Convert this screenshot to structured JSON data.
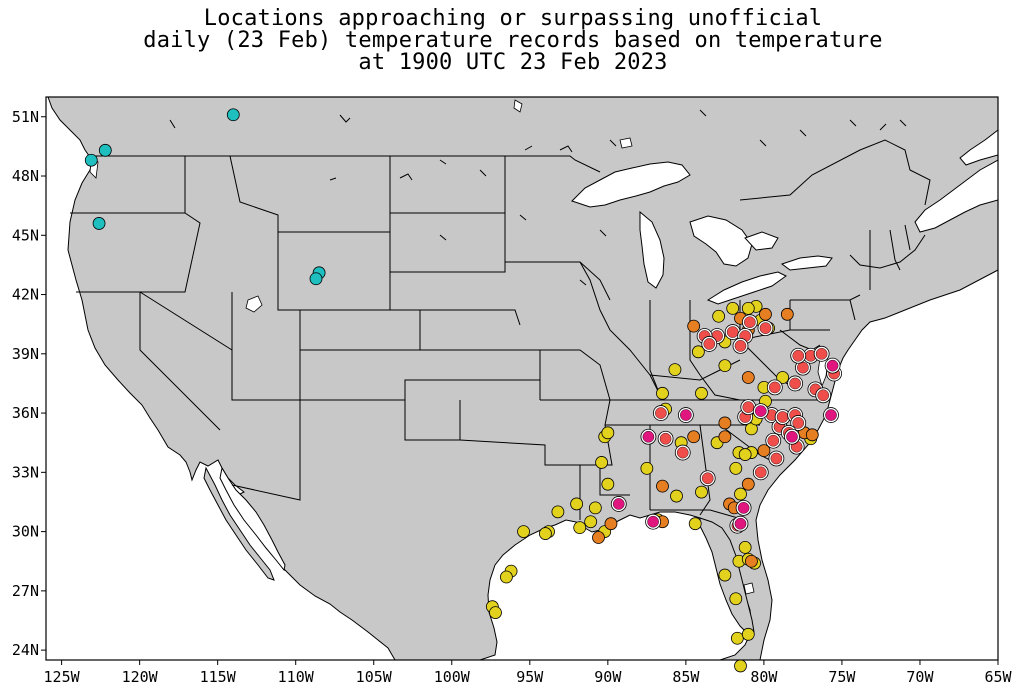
{
  "title": {
    "line1": "Locations approaching or surpassing unofficial",
    "line2": "daily (23 Feb) temperature records based on temperature",
    "line3": "at 1900 UTC 23 Feb 2023"
  },
  "axes": {
    "lon_range": [
      -126,
      -65
    ],
    "lat_range": [
      23.5,
      52
    ],
    "lat_ticks": [
      {
        "value": 51,
        "label": "51N"
      },
      {
        "value": 48,
        "label": "48N"
      },
      {
        "value": 45,
        "label": "45N"
      },
      {
        "value": 42,
        "label": "42N"
      },
      {
        "value": 39,
        "label": "39N"
      },
      {
        "value": 36,
        "label": "36N"
      },
      {
        "value": 33,
        "label": "33N"
      },
      {
        "value": 30,
        "label": "30N"
      },
      {
        "value": 27,
        "label": "27N"
      },
      {
        "value": 24,
        "label": "24N"
      }
    ],
    "lon_ticks": [
      {
        "value": -125,
        "label": "125W"
      },
      {
        "value": -120,
        "label": "120W"
      },
      {
        "value": -115,
        "label": "115W"
      },
      {
        "value": -110,
        "label": "110W"
      },
      {
        "value": -105,
        "label": "105W"
      },
      {
        "value": -100,
        "label": "100W"
      },
      {
        "value": -95,
        "label": "95W"
      },
      {
        "value": -90,
        "label": "90W"
      },
      {
        "value": -85,
        "label": "85W"
      },
      {
        "value": -80,
        "label": "80W"
      },
      {
        "value": -75,
        "label": "75W"
      },
      {
        "value": -70,
        "label": "70W"
      },
      {
        "value": -65,
        "label": "65W"
      }
    ]
  },
  "colors": {
    "land": "#c8c8c8",
    "water": "#ffffff",
    "border": "#000000",
    "cyan": "#1fbfbf",
    "yellow": "#e2d21e",
    "orange": "#e67e22",
    "red": "#ef4e4b",
    "magenta": "#e0157e"
  },
  "markers": [
    {
      "lon": -114.0,
      "lat": 51.1,
      "cat": "cyan"
    },
    {
      "lon": -122.2,
      "lat": 49.3,
      "cat": "cyan"
    },
    {
      "lon": -123.1,
      "lat": 48.8,
      "cat": "cyan"
    },
    {
      "lon": -122.6,
      "lat": 45.6,
      "cat": "cyan"
    },
    {
      "lon": -108.5,
      "lat": 43.1,
      "cat": "cyan"
    },
    {
      "lon": -108.7,
      "lat": 42.8,
      "cat": "cyan"
    },
    {
      "lon": -80.5,
      "lat": 41.4,
      "cat": "yellow"
    },
    {
      "lon": -81.0,
      "lat": 41.3,
      "cat": "yellow"
    },
    {
      "lon": -82.0,
      "lat": 41.3,
      "cat": "yellow"
    },
    {
      "lon": -80.2,
      "lat": 40.7,
      "cat": "yellow"
    },
    {
      "lon": -79.7,
      "lat": 40.3,
      "cat": "yellow"
    },
    {
      "lon": -82.9,
      "lat": 40.9,
      "cat": "yellow"
    },
    {
      "lon": -81.5,
      "lat": 40.8,
      "cat": "orange"
    },
    {
      "lon": -79.9,
      "lat": 41.0,
      "cat": "orange"
    },
    {
      "lon": -78.5,
      "lat": 41.0,
      "cat": "orange"
    },
    {
      "lon": -84.5,
      "lat": 40.4,
      "cat": "orange"
    },
    {
      "lon": -81.0,
      "lat": 40.2,
      "cat": "orange"
    },
    {
      "lon": -80.9,
      "lat": 40.6,
      "cat": "red"
    },
    {
      "lon": -83.0,
      "lat": 39.9,
      "cat": "red"
    },
    {
      "lon": -82.0,
      "lat": 40.1,
      "cat": "red"
    },
    {
      "lon": -81.2,
      "lat": 39.9,
      "cat": "red"
    },
    {
      "lon": -79.9,
      "lat": 40.3,
      "cat": "red"
    },
    {
      "lon": -83.8,
      "lat": 39.9,
      "cat": "red"
    },
    {
      "lon": -83.5,
      "lat": 39.5,
      "cat": "red"
    },
    {
      "lon": -81.5,
      "lat": 39.4,
      "cat": "red"
    },
    {
      "lon": -82.5,
      "lat": 39.6,
      "cat": "yellow"
    },
    {
      "lon": -84.2,
      "lat": 39.1,
      "cat": "yellow"
    },
    {
      "lon": -82.5,
      "lat": 38.4,
      "cat": "yellow"
    },
    {
      "lon": -85.7,
      "lat": 38.2,
      "cat": "yellow"
    },
    {
      "lon": -84.0,
      "lat": 37.0,
      "cat": "yellow"
    },
    {
      "lon": -86.5,
      "lat": 37.0,
      "cat": "yellow"
    },
    {
      "lon": -86.3,
      "lat": 36.2,
      "cat": "yellow"
    },
    {
      "lon": -86.6,
      "lat": 36.0,
      "cat": "red"
    },
    {
      "lon": -85.0,
      "lat": 35.9,
      "cat": "magenta"
    },
    {
      "lon": -81.2,
      "lat": 35.8,
      "cat": "red"
    },
    {
      "lon": -80.2,
      "lat": 36.1,
      "cat": "magenta"
    },
    {
      "lon": -79.5,
      "lat": 35.9,
      "cat": "red"
    },
    {
      "lon": -80.8,
      "lat": 35.2,
      "cat": "yellow"
    },
    {
      "lon": -79.0,
      "lat": 35.3,
      "cat": "red"
    },
    {
      "lon": -78.8,
      "lat": 35.8,
      "cat": "red"
    },
    {
      "lon": -78.0,
      "lat": 35.9,
      "cat": "red"
    },
    {
      "lon": -77.8,
      "lat": 35.5,
      "cat": "red"
    },
    {
      "lon": -77.4,
      "lat": 35.0,
      "cat": "orange"
    },
    {
      "lon": -77.9,
      "lat": 34.3,
      "cat": "red"
    },
    {
      "lon": -76.9,
      "lat": 34.9,
      "cat": "orange"
    },
    {
      "lon": -75.7,
      "lat": 35.9,
      "cat": "magenta"
    },
    {
      "lon": -79.3,
      "lat": 37.3,
      "cat": "red"
    },
    {
      "lon": -78.0,
      "lat": 37.5,
      "cat": "red"
    },
    {
      "lon": -77.5,
      "lat": 38.3,
      "cat": "red"
    },
    {
      "lon": -76.7,
      "lat": 37.2,
      "cat": "red"
    },
    {
      "lon": -76.2,
      "lat": 36.9,
      "cat": "red"
    },
    {
      "lon": -75.5,
      "lat": 38.0,
      "cat": "red"
    },
    {
      "lon": -75.6,
      "lat": 38.4,
      "cat": "magenta"
    },
    {
      "lon": -77.0,
      "lat": 38.9,
      "cat": "red"
    },
    {
      "lon": -76.3,
      "lat": 39.0,
      "cat": "red"
    },
    {
      "lon": -77.8,
      "lat": 38.9,
      "cat": "red"
    },
    {
      "lon": -78.8,
      "lat": 37.8,
      "cat": "yellow"
    },
    {
      "lon": -80.0,
      "lat": 37.3,
      "cat": "yellow"
    },
    {
      "lon": -81.0,
      "lat": 37.8,
      "cat": "orange"
    },
    {
      "lon": -79.9,
      "lat": 36.6,
      "cat": "yellow"
    },
    {
      "lon": -80.5,
      "lat": 35.7,
      "cat": "yellow"
    },
    {
      "lon": -81.0,
      "lat": 36.3,
      "cat": "red"
    },
    {
      "lon": -82.5,
      "lat": 35.5,
      "cat": "orange"
    },
    {
      "lon": -82.5,
      "lat": 34.8,
      "cat": "orange"
    },
    {
      "lon": -83.0,
      "lat": 34.5,
      "cat": "yellow"
    },
    {
      "lon": -81.6,
      "lat": 34.0,
      "cat": "yellow"
    },
    {
      "lon": -80.8,
      "lat": 34.0,
      "cat": "yellow"
    },
    {
      "lon": -81.2,
      "lat": 33.9,
      "cat": "yellow"
    },
    {
      "lon": -80.0,
      "lat": 34.1,
      "cat": "orange"
    },
    {
      "lon": -79.4,
      "lat": 34.6,
      "cat": "red"
    },
    {
      "lon": -78.4,
      "lat": 35.0,
      "cat": "red"
    },
    {
      "lon": -77.0,
      "lat": 34.7,
      "cat": "yellow"
    },
    {
      "lon": -78.2,
      "lat": 34.8,
      "cat": "magenta"
    },
    {
      "lon": -79.2,
      "lat": 33.7,
      "cat": "red"
    },
    {
      "lon": -80.2,
      "lat": 33.0,
      "cat": "red"
    },
    {
      "lon": -81.0,
      "lat": 32.4,
      "cat": "orange"
    },
    {
      "lon": -81.8,
      "lat": 33.2,
      "cat": "yellow"
    },
    {
      "lon": -83.6,
      "lat": 32.7,
      "cat": "red"
    },
    {
      "lon": -84.0,
      "lat": 32.0,
      "cat": "yellow"
    },
    {
      "lon": -81.5,
      "lat": 31.9,
      "cat": "yellow"
    },
    {
      "lon": -82.2,
      "lat": 31.4,
      "cat": "orange"
    },
    {
      "lon": -81.9,
      "lat": 31.2,
      "cat": "orange"
    },
    {
      "lon": -81.3,
      "lat": 31.2,
      "cat": "magenta"
    },
    {
      "lon": -81.5,
      "lat": 30.4,
      "cat": "magenta"
    },
    {
      "lon": -81.7,
      "lat": 30.3,
      "cat": "red"
    },
    {
      "lon": -84.5,
      "lat": 34.8,
      "cat": "orange"
    },
    {
      "lon": -85.3,
      "lat": 34.5,
      "cat": "yellow"
    },
    {
      "lon": -87.4,
      "lat": 34.8,
      "cat": "magenta"
    },
    {
      "lon": -86.3,
      "lat": 34.7,
      "cat": "red"
    },
    {
      "lon": -85.2,
      "lat": 34.0,
      "cat": "red"
    },
    {
      "lon": -87.5,
      "lat": 33.2,
      "cat": "yellow"
    },
    {
      "lon": -86.5,
      "lat": 32.3,
      "cat": "orange"
    },
    {
      "lon": -85.6,
      "lat": 31.8,
      "cat": "yellow"
    },
    {
      "lon": -86.8,
      "lat": 30.6,
      "cat": "yellow"
    },
    {
      "lon": -87.1,
      "lat": 30.5,
      "cat": "magenta"
    },
    {
      "lon": -86.5,
      "lat": 30.5,
      "cat": "orange"
    },
    {
      "lon": -84.4,
      "lat": 30.4,
      "cat": "yellow"
    },
    {
      "lon": -89.3,
      "lat": 31.4,
      "cat": "magenta"
    },
    {
      "lon": -89.8,
      "lat": 30.4,
      "cat": "orange"
    },
    {
      "lon": -90.2,
      "lat": 30.0,
      "cat": "yellow"
    },
    {
      "lon": -90.6,
      "lat": 29.7,
      "cat": "orange"
    },
    {
      "lon": -90.8,
      "lat": 31.2,
      "cat": "yellow"
    },
    {
      "lon": -90.0,
      "lat": 32.4,
      "cat": "yellow"
    },
    {
      "lon": -90.4,
      "lat": 33.5,
      "cat": "yellow"
    },
    {
      "lon": -90.2,
      "lat": 34.8,
      "cat": "yellow"
    },
    {
      "lon": -90.0,
      "lat": 35.0,
      "cat": "yellow"
    },
    {
      "lon": -91.1,
      "lat": 30.5,
      "cat": "yellow"
    },
    {
      "lon": -91.8,
      "lat": 30.2,
      "cat": "yellow"
    },
    {
      "lon": -92.0,
      "lat": 31.4,
      "cat": "yellow"
    },
    {
      "lon": -93.2,
      "lat": 31.0,
      "cat": "yellow"
    },
    {
      "lon": -93.8,
      "lat": 30.0,
      "cat": "yellow"
    },
    {
      "lon": -94.0,
      "lat": 29.9,
      "cat": "yellow"
    },
    {
      "lon": -95.4,
      "lat": 30.0,
      "cat": "yellow"
    },
    {
      "lon": -96.2,
      "lat": 28.0,
      "cat": "yellow"
    },
    {
      "lon": -96.5,
      "lat": 27.7,
      "cat": "yellow"
    },
    {
      "lon": -97.4,
      "lat": 26.2,
      "cat": "yellow"
    },
    {
      "lon": -97.2,
      "lat": 25.9,
      "cat": "yellow"
    },
    {
      "lon": -82.5,
      "lat": 27.8,
      "cat": "yellow"
    },
    {
      "lon": -81.6,
      "lat": 28.5,
      "cat": "yellow"
    },
    {
      "lon": -81.2,
      "lat": 29.2,
      "cat": "yellow"
    },
    {
      "lon": -81.0,
      "lat": 28.6,
      "cat": "yellow"
    },
    {
      "lon": -80.6,
      "lat": 28.4,
      "cat": "yellow"
    },
    {
      "lon": -80.8,
      "lat": 28.5,
      "cat": "orange"
    },
    {
      "lon": -81.8,
      "lat": 26.6,
      "cat": "yellow"
    },
    {
      "lon": -81.7,
      "lat": 24.6,
      "cat": "yellow"
    },
    {
      "lon": -81.0,
      "lat": 24.8,
      "cat": "yellow"
    },
    {
      "lon": -81.5,
      "lat": 23.2,
      "cat": "yellow"
    }
  ]
}
